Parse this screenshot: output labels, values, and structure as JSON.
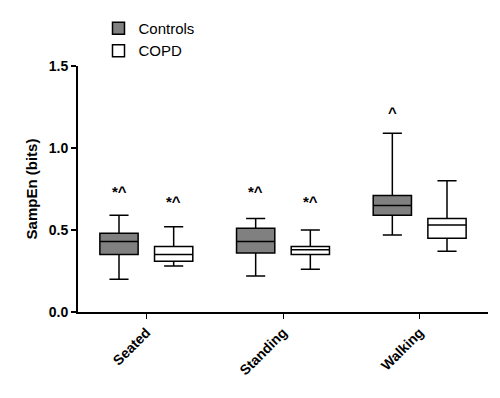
{
  "chart_data": {
    "type": "box",
    "y_label": "SampEn (bits)",
    "categories": [
      "Seated",
      "Standing",
      "Walking"
    ],
    "series": [
      {
        "name": "Controls",
        "color": "#808080",
        "min": [
          0.2,
          0.22,
          0.47
        ],
        "q1": [
          0.35,
          0.36,
          0.59
        ],
        "median": [
          0.43,
          0.43,
          0.65
        ],
        "q3": [
          0.48,
          0.51,
          0.71
        ],
        "max": [
          0.59,
          0.57,
          1.09
        ]
      },
      {
        "name": "COPD",
        "color": "#ffffff",
        "min": [
          0.28,
          0.26,
          0.37
        ],
        "q1": [
          0.31,
          0.35,
          0.45
        ],
        "median": [
          0.35,
          0.38,
          0.53
        ],
        "q3": [
          0.4,
          0.4,
          0.57
        ],
        "max": [
          0.52,
          0.5,
          0.8
        ]
      }
    ],
    "ylim": [
      0,
      1.5
    ],
    "yticks": [
      {
        "value": 0,
        "label": "0.0"
      },
      {
        "value": 0.5,
        "label": "0.5"
      },
      {
        "value": 1,
        "label": "1.0"
      },
      {
        "value": 1.5,
        "label": "1.5"
      }
    ],
    "annotations": [
      {
        "text": "*^",
        "category": "Seated",
        "series": "Controls",
        "y": 0.67
      },
      {
        "text": "*^",
        "category": "Seated",
        "series": "COPD",
        "y": 0.61
      },
      {
        "text": "*^",
        "category": "Standing",
        "series": "Controls",
        "y": 0.67
      },
      {
        "text": "*^",
        "category": "Standing",
        "series": "COPD",
        "y": 0.61
      },
      {
        "text": "^",
        "category": "Walking",
        "series": "Controls",
        "y": 1.15
      }
    ],
    "legend": "top-left",
    "grid": false
  }
}
